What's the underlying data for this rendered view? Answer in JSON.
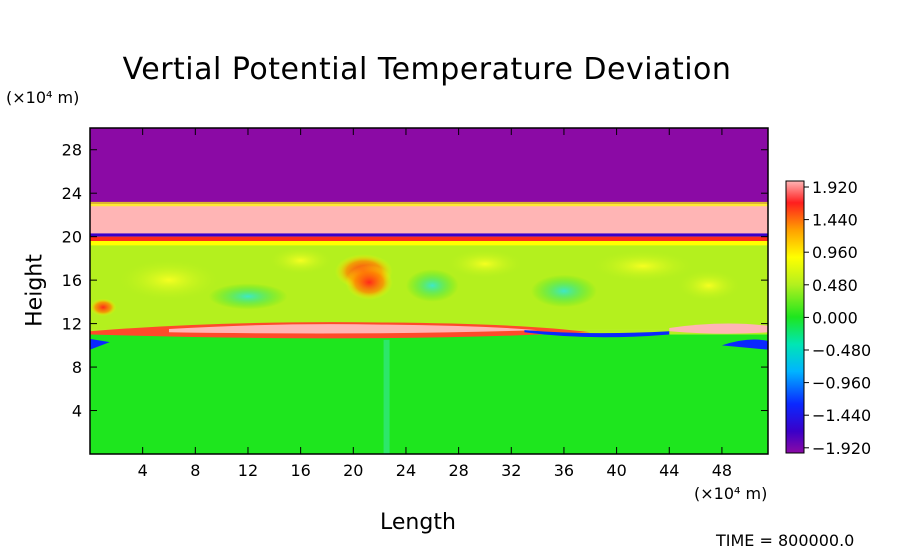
{
  "chart_data": {
    "type": "heatmap",
    "title": "Vertial Potential Temperature Deviation",
    "xlabel": "Length",
    "ylabel": "Height",
    "x_unit": "(×10⁴ m)",
    "y_unit": "(×10⁴ m)",
    "xlim": [
      0,
      51.5
    ],
    "ylim": [
      0,
      30
    ],
    "x_ticks": [
      4,
      8,
      12,
      16,
      20,
      24,
      28,
      32,
      36,
      40,
      44,
      48
    ],
    "y_ticks": [
      4,
      8,
      12,
      16,
      20,
      24,
      28
    ],
    "colorbar": {
      "labels": [
        "1.920",
        "1.440",
        "0.960",
        "0.480",
        "0.000",
        "-0.480",
        "-0.960",
        "-1.440",
        "-1.920"
      ],
      "range": [
        -1.92,
        1.92
      ]
    },
    "bands": [
      {
        "y0": 23,
        "y1": 30,
        "value": -1.92
      },
      {
        "y0": 20.3,
        "y1": 23,
        "value": 1.92
      },
      {
        "y0": 11.5,
        "y1": 20,
        "value": 0.4
      },
      {
        "y0": 0,
        "y1": 11,
        "value": 0.0
      }
    ],
    "footer": "TIME = 800000.0"
  },
  "colors": {
    "purple": "#8b0aa5",
    "pink": "#ffb5b5",
    "green": "#1ee61e"
  }
}
